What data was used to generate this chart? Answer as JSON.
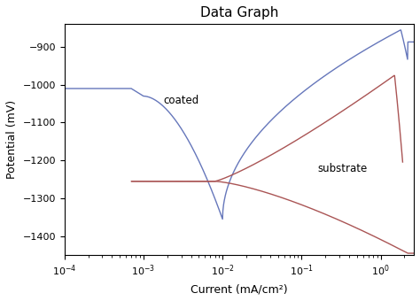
{
  "title": "Data Graph",
  "xlabel": "Current (mA/cm²)",
  "ylabel": "Potential (mV)",
  "ylim": [
    -1450,
    -840
  ],
  "yticks": [
    -1400,
    -1300,
    -1200,
    -1100,
    -1000,
    -900
  ],
  "coated_color": "#6677bb",
  "substrate_color": "#aa5555",
  "coated_label": "coated",
  "substrate_label": "substrate",
  "background_color": "#ffffff"
}
